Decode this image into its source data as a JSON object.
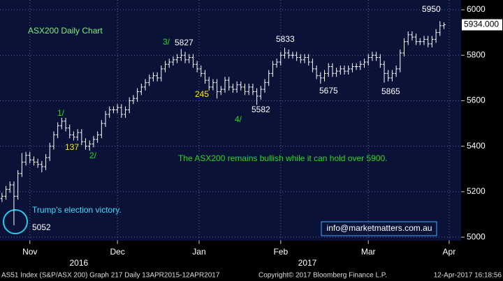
{
  "chart_data": {
    "type": "ohlc",
    "title": "ASX200 Daily Chart",
    "color": "#ffffff",
    "xlim": [
      -0.5,
      115.3
    ],
    "ylim": [
      4985,
      6043
    ],
    "yticks": [
      5000,
      5200,
      5400,
      5600,
      5800,
      6000
    ],
    "xticks": [
      {
        "value": 7,
        "label": "Nov"
      },
      {
        "value": 29,
        "label": "Dec"
      },
      {
        "value": 49.5,
        "label": "Jan"
      },
      {
        "value": 70,
        "label": "Feb"
      },
      {
        "value": 92,
        "label": "Mar"
      },
      {
        "value": 112.3,
        "label": "Apr"
      }
    ],
    "year_labels": [
      {
        "value": 19.3,
        "label": "2016"
      },
      {
        "value": 76.7,
        "label": "2017"
      }
    ],
    "grid": true,
    "last_price_label": "5934.000",
    "open": [
      5170,
      5180,
      5210,
      5230,
      5180,
      5280,
      5330,
      5360,
      5340,
      5330,
      5320,
      5310,
      5350,
      5400,
      5450,
      5490,
      5510,
      5480,
      5450,
      5440,
      5460,
      5420,
      5400,
      5410,
      5430,
      5450,
      5500,
      5540,
      5560,
      5560,
      5570,
      5540,
      5560,
      5600,
      5610,
      5640,
      5660,
      5680,
      5700,
      5710,
      5700,
      5740,
      5760,
      5770,
      5780,
      5790,
      5800,
      5780,
      5790,
      5760,
      5740,
      5720,
      5690,
      5660,
      5680,
      5640,
      5650,
      5690,
      5660,
      5650,
      5670,
      5660,
      5640,
      5660,
      5640,
      5620,
      5650,
      5680,
      5720,
      5760,
      5770,
      5800,
      5810,
      5800,
      5800,
      5790,
      5780,
      5790,
      5770,
      5740,
      5710,
      5700,
      5720,
      5750,
      5720,
      5730,
      5740,
      5730,
      5740,
      5750,
      5750,
      5760,
      5770,
      5790,
      5800,
      5790,
      5760,
      5720,
      5700,
      5720,
      5740,
      5810,
      5860,
      5890,
      5880,
      5860,
      5860,
      5870,
      5850,
      5870,
      5900,
      5930
    ],
    "high": [
      5195,
      5225,
      5245,
      5245,
      5295,
      5370,
      5375,
      5375,
      5355,
      5345,
      5335,
      5365,
      5415,
      5465,
      5505,
      5525,
      5525,
      5495,
      5465,
      5475,
      5475,
      5435,
      5425,
      5445,
      5465,
      5515,
      5555,
      5575,
      5575,
      5585,
      5585,
      5575,
      5615,
      5625,
      5655,
      5675,
      5695,
      5715,
      5725,
      5725,
      5755,
      5775,
      5785,
      5795,
      5805,
      5827,
      5815,
      5805,
      5805,
      5775,
      5755,
      5735,
      5705,
      5695,
      5695,
      5665,
      5705,
      5705,
      5675,
      5685,
      5685,
      5675,
      5675,
      5675,
      5655,
      5665,
      5695,
      5735,
      5775,
      5785,
      5815,
      5833,
      5825,
      5815,
      5815,
      5805,
      5805,
      5805,
      5785,
      5755,
      5725,
      5735,
      5765,
      5765,
      5745,
      5755,
      5755,
      5755,
      5765,
      5765,
      5775,
      5785,
      5805,
      5815,
      5815,
      5805,
      5775,
      5735,
      5735,
      5755,
      5825,
      5875,
      5905,
      5905,
      5895,
      5875,
      5885,
      5885,
      5885,
      5915,
      5950,
      5945
    ],
    "low": [
      5155,
      5165,
      5195,
      5052,
      5165,
      5265,
      5315,
      5325,
      5315,
      5305,
      5285,
      5295,
      5335,
      5385,
      5435,
      5475,
      5465,
      5435,
      5425,
      5425,
      5405,
      5385,
      5380,
      5395,
      5415,
      5435,
      5485,
      5525,
      5545,
      5545,
      5525,
      5525,
      5545,
      5585,
      5595,
      5625,
      5645,
      5665,
      5685,
      5685,
      5685,
      5725,
      5745,
      5755,
      5765,
      5775,
      5765,
      5765,
      5745,
      5725,
      5705,
      5675,
      5645,
      5645,
      5610,
      5625,
      5635,
      5645,
      5635,
      5635,
      5645,
      5625,
      5625,
      5625,
      5582,
      5605,
      5635,
      5665,
      5705,
      5745,
      5755,
      5785,
      5785,
      5785,
      5775,
      5765,
      5765,
      5755,
      5725,
      5695,
      5675,
      5685,
      5705,
      5705,
      5705,
      5715,
      5715,
      5715,
      5725,
      5735,
      5735,
      5745,
      5755,
      5775,
      5775,
      5745,
      5680,
      5685,
      5685,
      5705,
      5725,
      5795,
      5845,
      5865,
      5845,
      5845,
      5845,
      5835,
      5835,
      5855,
      5885,
      5915
    ],
    "close": [
      5180,
      5210,
      5230,
      5180,
      5280,
      5330,
      5360,
      5340,
      5330,
      5320,
      5310,
      5350,
      5400,
      5450,
      5490,
      5510,
      5480,
      5450,
      5440,
      5460,
      5420,
      5400,
      5410,
      5430,
      5450,
      5500,
      5540,
      5560,
      5560,
      5570,
      5540,
      5560,
      5600,
      5610,
      5640,
      5660,
      5680,
      5700,
      5710,
      5700,
      5740,
      5760,
      5770,
      5780,
      5790,
      5800,
      5780,
      5790,
      5760,
      5740,
      5720,
      5690,
      5660,
      5680,
      5640,
      5650,
      5690,
      5660,
      5650,
      5670,
      5660,
      5640,
      5660,
      5640,
      5620,
      5650,
      5680,
      5720,
      5760,
      5770,
      5800,
      5810,
      5800,
      5800,
      5790,
      5780,
      5790,
      5770,
      5740,
      5710,
      5700,
      5720,
      5750,
      5720,
      5730,
      5740,
      5730,
      5740,
      5750,
      5750,
      5760,
      5770,
      5790,
      5800,
      5790,
      5760,
      5720,
      5700,
      5720,
      5740,
      5810,
      5860,
      5890,
      5880,
      5860,
      5860,
      5870,
      5850,
      5870,
      5900,
      5930,
      5934
    ],
    "annotations": [
      "1/",
      "137",
      "2/",
      "3/",
      "5827",
      "245",
      "4/",
      "5582",
      "5833",
      "5675",
      "5865",
      "5950",
      "5052"
    ],
    "commentary": "The ASX200 remains bullish while it can hold over 5900.",
    "event_label": "Trump's election victory.",
    "contact": "info@marketmatters.com.au",
    "footer": {
      "left": "AS51 Index (S&P/ASX 200) Graph 217  Daily 13APR2015-12APR2017",
      "center": "Copyright© 2017 Bloomberg Finance L.P.",
      "right": "12-Apr-2017 16:18:56"
    }
  }
}
